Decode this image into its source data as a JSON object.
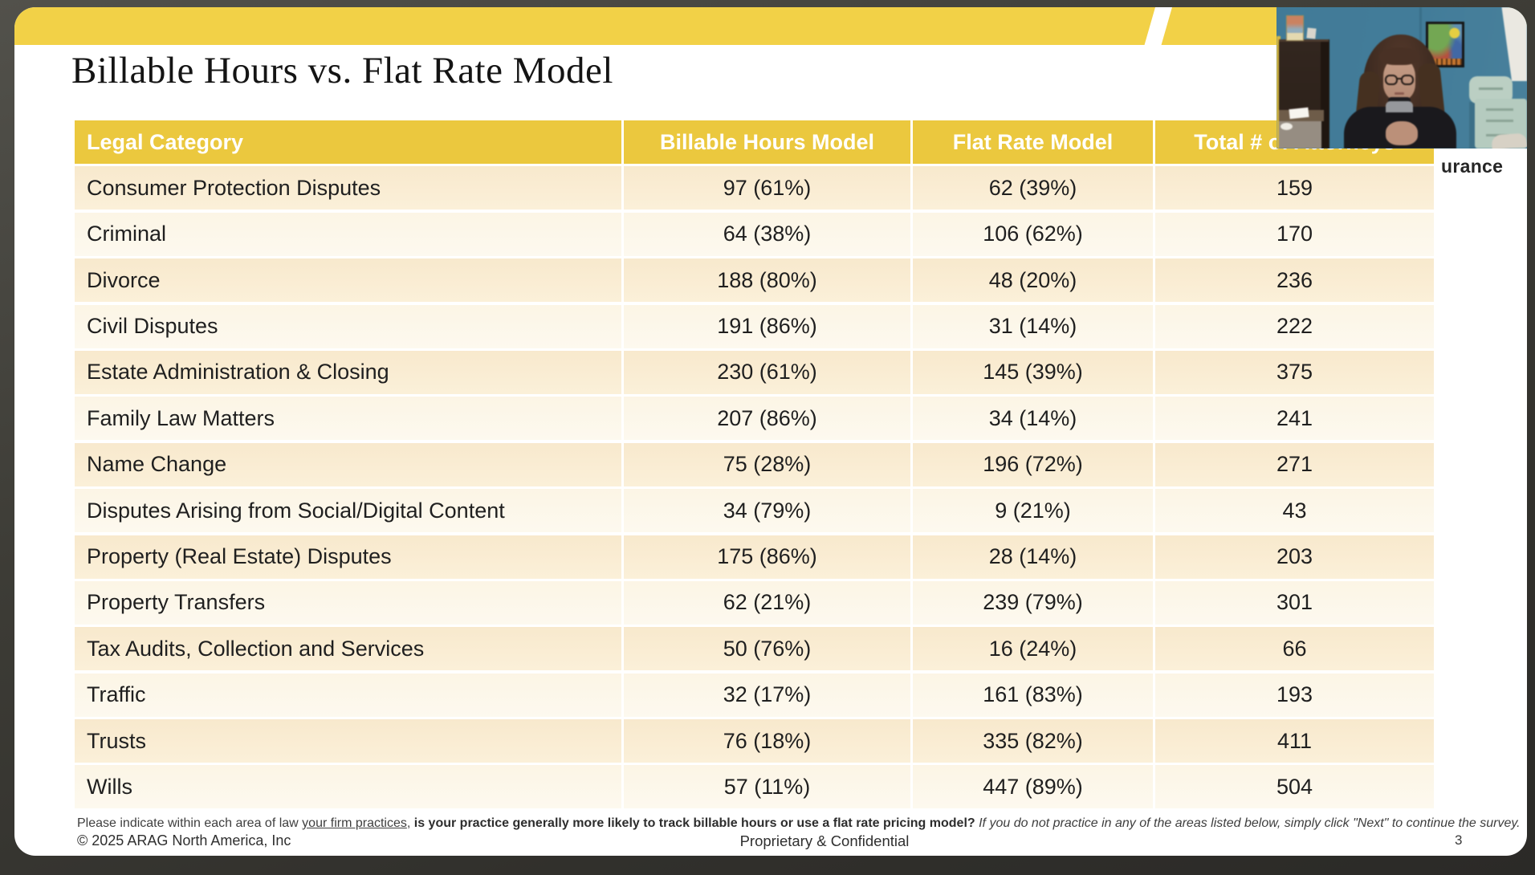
{
  "slide": {
    "title": "Billable Hours vs. Flat Rate Model",
    "partial_logo_text": "urance",
    "footer": {
      "prompt_regular": "Please indicate within each area of law ",
      "prompt_link": "your firm practices",
      "prompt_mid": ", ",
      "prompt_bold": "is your practice generally more likely to track billable hours or use a flat rate pricing model? ",
      "prompt_italic": "If you do not practice in any of the areas listed below, simply click \"Next\" to continue the survey.",
      "copyright": "© 2025 ARAG North America, Inc",
      "confidential": "Proprietary & Confidential",
      "page_number": "3"
    }
  },
  "table": {
    "headers": [
      "Legal Category",
      "Billable Hours Model",
      "Flat Rate Model",
      "Total # of Attorneys"
    ],
    "rows": [
      {
        "category": "Consumer Protection Disputes",
        "billable_hours": "97 (61%)",
        "flat_rate": "62 (39%)",
        "total": "159"
      },
      {
        "category": "Criminal",
        "billable_hours": "64 (38%)",
        "flat_rate": "106 (62%)",
        "total": "170"
      },
      {
        "category": "Divorce",
        "billable_hours": "188 (80%)",
        "flat_rate": "48 (20%)",
        "total": "236"
      },
      {
        "category": "Civil Disputes",
        "billable_hours": "191 (86%)",
        "flat_rate": "31 (14%)",
        "total": "222"
      },
      {
        "category": "Estate Administration & Closing",
        "billable_hours": "230 (61%)",
        "flat_rate": "145 (39%)",
        "total": "375"
      },
      {
        "category": "Family Law Matters",
        "billable_hours": "207 (86%)",
        "flat_rate": "34 (14%)",
        "total": "241"
      },
      {
        "category": "Name Change",
        "billable_hours": "75 (28%)",
        "flat_rate": "196 (72%)",
        "total": "271"
      },
      {
        "category": "Disputes Arising from Social/Digital Content",
        "billable_hours": "34 (79%)",
        "flat_rate": "9 (21%)",
        "total": "43"
      },
      {
        "category": "Property (Real Estate) Disputes",
        "billable_hours": "175 (86%)",
        "flat_rate": "28 (14%)",
        "total": "203"
      },
      {
        "category": "Property Transfers",
        "billable_hours": "62 (21%)",
        "flat_rate": "239 (79%)",
        "total": "301"
      },
      {
        "category": "Tax Audits, Collection and Services",
        "billable_hours": "50 (76%)",
        "flat_rate": "16 (24%)",
        "total": "66"
      },
      {
        "category": "Traffic",
        "billable_hours": "32 (17%)",
        "flat_rate": "161 (83%)",
        "total": "193"
      },
      {
        "category": "Trusts",
        "billable_hours": "76 (18%)",
        "flat_rate": "335 (82%)",
        "total": "411"
      },
      {
        "category": "Wills",
        "billable_hours": "57 (11%)",
        "flat_rate": "447 (89%)",
        "total": "504"
      }
    ]
  },
  "colors": {
    "accent_band_yellow": "#F2D147",
    "header_yellow": "#EBC83E",
    "row_cream_dark": "#F9EBD1",
    "row_cream_light": "#FCF6E8",
    "frame_dark": "#3A3935"
  }
}
